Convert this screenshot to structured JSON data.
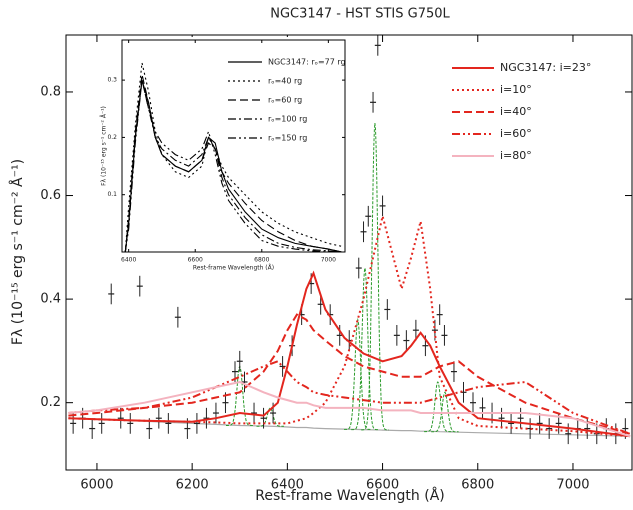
{
  "chart_data": [
    {
      "type": "line",
      "title": "NGC3147 - HST STIS G750L",
      "x_label": "Rest-frame Wavelength (Å)",
      "y_label": "Fλ (10⁻¹⁵ erg s⁻¹ cm⁻² Å⁻¹)",
      "xlim": [
        5935,
        7124
      ],
      "ylim": [
        0.07,
        0.91
      ],
      "xticks": [
        6000,
        6200,
        6400,
        6600,
        6800,
        7000
      ],
      "yticks": [
        0.2,
        0.4,
        0.6,
        0.8
      ],
      "x": [
        5940,
        6000,
        6100,
        6200,
        6250,
        6300,
        6350,
        6380,
        6400,
        6420,
        6440,
        6455,
        6480,
        6520,
        6560,
        6600,
        6640,
        6660,
        6680,
        6700,
        6720,
        6760,
        6800,
        6900,
        7000,
        7120
      ],
      "series": [
        {
          "name": "NGC3147: i=23°",
          "color": "#e3261e",
          "dash": "solid",
          "values": [
            0.17,
            0.168,
            0.165,
            0.163,
            0.17,
            0.18,
            0.175,
            0.2,
            0.27,
            0.35,
            0.42,
            0.45,
            0.38,
            0.325,
            0.295,
            0.28,
            0.29,
            0.31,
            0.335,
            0.31,
            0.27,
            0.2,
            0.17,
            0.16,
            0.15,
            0.135
          ]
        },
        {
          "name": "i=10°",
          "color": "#e3261e",
          "dash": "dotted",
          "values": [
            0.17,
            0.168,
            0.165,
            0.163,
            0.162,
            0.16,
            0.16,
            0.16,
            0.16,
            0.165,
            0.17,
            0.18,
            0.2,
            0.27,
            0.4,
            0.56,
            0.42,
            0.48,
            0.55,
            0.42,
            0.25,
            0.17,
            0.155,
            0.15,
            0.145,
            0.135
          ]
        },
        {
          "name": "i=40°",
          "color": "#e3261e",
          "dash": "dashed",
          "values": [
            0.175,
            0.18,
            0.19,
            0.2,
            0.21,
            0.22,
            0.26,
            0.3,
            0.34,
            0.37,
            0.36,
            0.34,
            0.32,
            0.29,
            0.27,
            0.26,
            0.25,
            0.25,
            0.25,
            0.26,
            0.27,
            0.28,
            0.25,
            0.2,
            0.17,
            0.14
          ]
        },
        {
          "name": "i=60°",
          "color": "#e3261e",
          "dash": "dashdotdot",
          "values": [
            0.18,
            0.185,
            0.19,
            0.21,
            0.23,
            0.25,
            0.27,
            0.28,
            0.26,
            0.24,
            0.23,
            0.22,
            0.215,
            0.21,
            0.205,
            0.2,
            0.2,
            0.2,
            0.2,
            0.205,
            0.21,
            0.22,
            0.23,
            0.24,
            0.18,
            0.14
          ]
        },
        {
          "name": "i=80°",
          "color": "#f4b3bf",
          "dash": "solid",
          "values": [
            0.18,
            0.185,
            0.2,
            0.22,
            0.23,
            0.24,
            0.22,
            0.21,
            0.205,
            0.2,
            0.2,
            0.195,
            0.19,
            0.19,
            0.19,
            0.185,
            0.185,
            0.185,
            0.18,
            0.18,
            0.18,
            0.18,
            0.18,
            0.18,
            0.17,
            0.135
          ]
        }
      ],
      "continuum": {
        "color": "#aaaaaa",
        "values": [
          0.17,
          0.168,
          0.164,
          0.16,
          0.158,
          0.156,
          0.155,
          0.154,
          0.153,
          0.152,
          0.152,
          0.151,
          0.15,
          0.149,
          0.148,
          0.147,
          0.146,
          0.146,
          0.145,
          0.145,
          0.144,
          0.143,
          0.142,
          0.14,
          0.138,
          0.135
        ]
      },
      "narrow_lines": {
        "color": "#2a9a2a",
        "x": [
          6300,
          6364,
          6548,
          6563,
          6584,
          6716,
          6731
        ],
        "values": [
          0.27,
          0.19,
          0.36,
          0.46,
          0.74,
          0.24,
          0.22
        ]
      },
      "points": {
        "color": "#222222",
        "x": [
          5950,
          5970,
          5990,
          6010,
          6030,
          6050,
          6070,
          6090,
          6110,
          6130,
          6150,
          6170,
          6190,
          6210,
          6230,
          6250,
          6270,
          6290,
          6300,
          6310,
          6330,
          6350,
          6370,
          6390,
          6410,
          6430,
          6450,
          6470,
          6490,
          6510,
          6530,
          6550,
          6560,
          6570,
          6580,
          6590,
          6600,
          6610,
          6630,
          6650,
          6670,
          6690,
          6710,
          6720,
          6730,
          6750,
          6770,
          6790,
          6810,
          6830,
          6850,
          6870,
          6890,
          6910,
          6930,
          6950,
          6970,
          6990,
          7010,
          7030,
          7050,
          7070,
          7090,
          7110
        ],
        "values": [
          0.16,
          0.17,
          0.15,
          0.16,
          0.41,
          0.17,
          0.16,
          0.425,
          0.15,
          0.17,
          0.16,
          0.365,
          0.15,
          0.16,
          0.17,
          0.18,
          0.2,
          0.26,
          0.28,
          0.24,
          0.18,
          0.17,
          0.18,
          0.27,
          0.31,
          0.37,
          0.43,
          0.39,
          0.37,
          0.33,
          0.32,
          0.46,
          0.53,
          0.56,
          0.78,
          0.89,
          0.58,
          0.38,
          0.33,
          0.32,
          0.34,
          0.31,
          0.34,
          0.37,
          0.33,
          0.26,
          0.22,
          0.2,
          0.19,
          0.18,
          0.17,
          0.16,
          0.17,
          0.15,
          0.16,
          0.15,
          0.16,
          0.14,
          0.15,
          0.15,
          0.14,
          0.15,
          0.14,
          0.15
        ],
        "errors": [
          0.02,
          0.02,
          0.02,
          0.02,
          0.02,
          0.02,
          0.02,
          0.02,
          0.02,
          0.02,
          0.02,
          0.02,
          0.02,
          0.02,
          0.02,
          0.02,
          0.02,
          0.02,
          0.02,
          0.02,
          0.02,
          0.02,
          0.02,
          0.02,
          0.02,
          0.02,
          0.02,
          0.02,
          0.02,
          0.02,
          0.02,
          0.02,
          0.02,
          0.02,
          0.02,
          0.02,
          0.02,
          0.02,
          0.02,
          0.02,
          0.02,
          0.02,
          0.02,
          0.02,
          0.02,
          0.02,
          0.02,
          0.02,
          0.02,
          0.02,
          0.02,
          0.02,
          0.02,
          0.02,
          0.02,
          0.02,
          0.02,
          0.02,
          0.02,
          0.02,
          0.02,
          0.02,
          0.02,
          0.02
        ]
      }
    },
    {
      "type": "line",
      "x_label": "Rest-frame Wavelength (Å)",
      "y_label": "Fλ (10⁻¹⁵ erg s⁻¹ cm⁻² Å⁻¹)",
      "xlim": [
        6380,
        7050
      ],
      "ylim": [
        0,
        0.37
      ],
      "xticks": [
        6400,
        6600,
        6800,
        7000
      ],
      "yticks": [
        0.1,
        0.2,
        0.3
      ],
      "x": [
        6390,
        6400,
        6420,
        6440,
        6460,
        6480,
        6500,
        6540,
        6580,
        6620,
        6640,
        6660,
        6680,
        6700,
        6750,
        6800,
        6850,
        6900,
        6950,
        7000,
        7040
      ],
      "series": [
        {
          "name": "NGC3147: rₒ=77 rg",
          "color": "#000000",
          "dash": "solid",
          "values": [
            0.0,
            0.05,
            0.2,
            0.3,
            0.26,
            0.2,
            0.17,
            0.15,
            0.14,
            0.16,
            0.2,
            0.19,
            0.14,
            0.11,
            0.07,
            0.04,
            0.025,
            0.015,
            0.01,
            0.005,
            0.0
          ]
        },
        {
          "name": "rₒ=40 rg",
          "color": "#000000",
          "dash": "dotted",
          "values": [
            0.0,
            0.08,
            0.22,
            0.33,
            0.28,
            0.21,
            0.17,
            0.14,
            0.13,
            0.15,
            0.2,
            0.18,
            0.15,
            0.13,
            0.1,
            0.07,
            0.05,
            0.035,
            0.025,
            0.015,
            0.01
          ]
        },
        {
          "name": "rₒ=60 rg",
          "color": "#000000",
          "dash": "dashed",
          "values": [
            0.0,
            0.06,
            0.21,
            0.31,
            0.26,
            0.2,
            0.17,
            0.15,
            0.14,
            0.16,
            0.19,
            0.18,
            0.14,
            0.12,
            0.085,
            0.055,
            0.035,
            0.02,
            0.01,
            0.005,
            0.0
          ]
        },
        {
          "name": "rₒ=100 rg",
          "color": "#000000",
          "dash": "dashdot",
          "values": [
            0.0,
            0.05,
            0.2,
            0.3,
            0.25,
            0.2,
            0.18,
            0.16,
            0.15,
            0.17,
            0.2,
            0.18,
            0.13,
            0.1,
            0.06,
            0.03,
            0.015,
            0.008,
            0.004,
            0.002,
            0.0
          ]
        },
        {
          "name": "rₒ=150 rg",
          "color": "#000000",
          "dash": "dashdotdot",
          "values": [
            0.0,
            0.04,
            0.19,
            0.3,
            0.25,
            0.21,
            0.19,
            0.17,
            0.16,
            0.18,
            0.21,
            0.17,
            0.12,
            0.09,
            0.05,
            0.02,
            0.01,
            0.005,
            0.002,
            0.0,
            0.0
          ]
        }
      ]
    }
  ]
}
